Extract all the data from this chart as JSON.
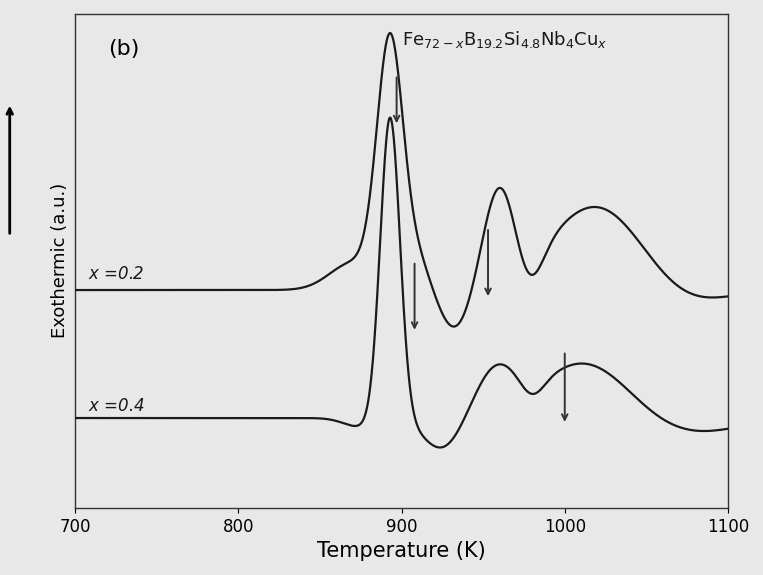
{
  "title": "(b)",
  "xlabel": "Temperature (K)",
  "ylabel": "Exothermic (a.u.)",
  "xlim": [
    700,
    1100
  ],
  "ylim": [
    -0.15,
    2.05
  ],
  "bg_color": "#e8e8e8",
  "label_x02": "x =0.2",
  "label_x04": "x =0.4",
  "line_color": "#1a1a1a",
  "arrow_color": "#333333",
  "xticks": [
    700,
    800,
    900,
    1000,
    1100
  ]
}
